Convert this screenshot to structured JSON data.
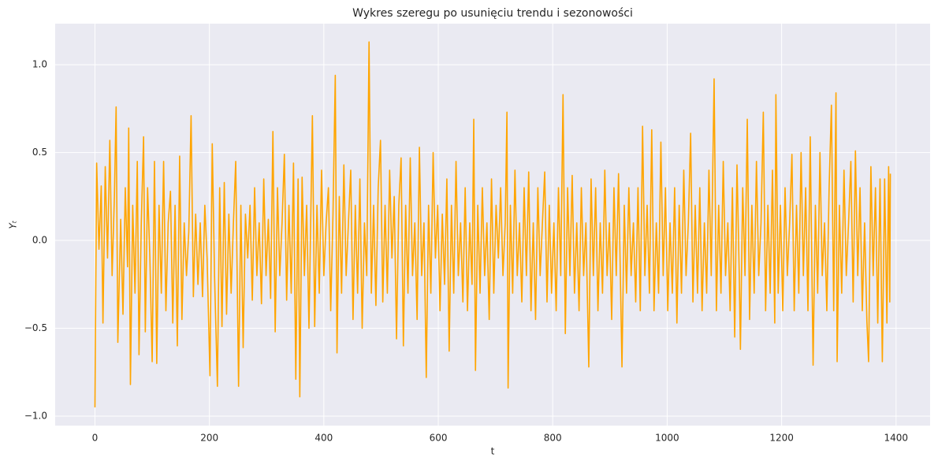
{
  "chart_data": {
    "type": "line",
    "title": "Wykres szeregu po usunięciu trendu i sezonowości",
    "xlabel": "t",
    "ylabel": "Yₜ",
    "color": "#ffa500",
    "grid": true,
    "xlim": [
      -69.5,
      1459.5
    ],
    "ylim": [
      -1.054,
      1.234
    ],
    "xticks": [
      0,
      200,
      400,
      600,
      800,
      1000,
      1200,
      1400
    ],
    "yticks": [
      {
        "value": -1,
        "label": "−1.0"
      },
      {
        "value": -0.5,
        "label": "−0.5"
      },
      {
        "value": 0,
        "label": "0.0"
      },
      {
        "value": 0.5,
        "label": "0.5"
      },
      {
        "value": 1,
        "label": "1.0"
      }
    ],
    "x": [
      0,
      3,
      7,
      11,
      14,
      18,
      22,
      26,
      30,
      34,
      37,
      40,
      45,
      49,
      53,
      57,
      59,
      62,
      66,
      70,
      74,
      77,
      81,
      85,
      88,
      92,
      96,
      100,
      104,
      108,
      112,
      116,
      120,
      124,
      128,
      132,
      136,
      140,
      144,
      148,
      152,
      156,
      160,
      164,
      168,
      172,
      176,
      180,
      184,
      188,
      192,
      196,
      201,
      205,
      209,
      214,
      218,
      222,
      226,
      230,
      234,
      238,
      242,
      246,
      251,
      255,
      259,
      263,
      267,
      271,
      275,
      279,
      283,
      287,
      291,
      295,
      299,
      303,
      307,
      311,
      315,
      319,
      323,
      327,
      331,
      335,
      339,
      343,
      347,
      351,
      355,
      358,
      362,
      366,
      370,
      374,
      378,
      380,
      384,
      388,
      392,
      396,
      400,
      404,
      408,
      412,
      416,
      420,
      423,
      427,
      431,
      435,
      439,
      443,
      447,
      451,
      455,
      459,
      463,
      467,
      471,
      475,
      479,
      483,
      487,
      491,
      495,
      499,
      503,
      507,
      511,
      515,
      519,
      523,
      527,
      531,
      535,
      539,
      543,
      547,
      551,
      555,
      559,
      563,
      567,
      571,
      575,
      579,
      583,
      587,
      591,
      595,
      599,
      603,
      607,
      611,
      615,
      619,
      623,
      627,
      631,
      635,
      639,
      643,
      647,
      651,
      655,
      659,
      662,
      665,
      669,
      673,
      677,
      681,
      685,
      689,
      693,
      697,
      701,
      705,
      709,
      713,
      717,
      720,
      722,
      726,
      730,
      734,
      738,
      742,
      746,
      750,
      754,
      758,
      762,
      766,
      770,
      774,
      778,
      782,
      786,
      790,
      794,
      798,
      802,
      806,
      810,
      814,
      818,
      822,
      826,
      830,
      834,
      838,
      842,
      846,
      850,
      854,
      858,
      863,
      867,
      871,
      875,
      879,
      883,
      887,
      891,
      895,
      899,
      903,
      907,
      911,
      915,
      921,
      925,
      929,
      933,
      937,
      941,
      945,
      949,
      953,
      957,
      961,
      965,
      969,
      973,
      977,
      981,
      985,
      989,
      993,
      997,
      1001,
      1005,
      1009,
      1013,
      1017,
      1021,
      1025,
      1029,
      1033,
      1037,
      1041,
      1045,
      1049,
      1053,
      1057,
      1061,
      1065,
      1069,
      1073,
      1077,
      1082,
      1086,
      1090,
      1094,
      1098,
      1102,
      1106,
      1110,
      1114,
      1118,
      1122,
      1126,
      1128,
      1132,
      1136,
      1140,
      1144,
      1148,
      1152,
      1156,
      1160,
      1164,
      1168,
      1172,
      1176,
      1180,
      1184,
      1188,
      1190,
      1194,
      1198,
      1202,
      1206,
      1210,
      1214,
      1218,
      1222,
      1226,
      1230,
      1234,
      1238,
      1242,
      1246,
      1250,
      1255,
      1259,
      1263,
      1267,
      1271,
      1275,
      1279,
      1283,
      1287,
      1291,
      1295,
      1297,
      1301,
      1305,
      1309,
      1313,
      1317,
      1321,
      1325,
      1329,
      1333,
      1337,
      1341,
      1345,
      1349,
      1352,
      1356,
      1360,
      1364,
      1368,
      1372,
      1376,
      1380,
      1384,
      1387,
      1389,
      1390
    ],
    "values": [
      -0.95,
      0.44,
      -0.05,
      0.31,
      -0.47,
      0.42,
      -0.1,
      0.57,
      -0.2,
      0.25,
      0.76,
      -0.58,
      0.12,
      -0.42,
      0.3,
      -0.15,
      0.64,
      -0.82,
      0.2,
      -0.3,
      0.45,
      -0.65,
      0.1,
      0.59,
      -0.52,
      0.3,
      -0.1,
      -0.69,
      0.45,
      -0.7,
      0.2,
      -0.3,
      0.45,
      -0.4,
      0.1,
      0.28,
      -0.47,
      0.2,
      -0.6,
      0.48,
      -0.45,
      0.1,
      -0.2,
      0.05,
      0.71,
      -0.32,
      0.15,
      -0.25,
      0.1,
      -0.32,
      0.2,
      -0.1,
      -0.77,
      0.55,
      -0.2,
      -0.83,
      0.3,
      -0.49,
      0.33,
      -0.42,
      0.15,
      -0.3,
      0.1,
      0.45,
      -0.83,
      0.2,
      -0.61,
      0.15,
      -0.1,
      0.2,
      -0.34,
      0.3,
      -0.2,
      0.1,
      -0.36,
      0.35,
      -0.2,
      0.12,
      -0.33,
      0.62,
      -0.52,
      0.3,
      -0.2,
      0.1,
      0.49,
      -0.34,
      0.2,
      -0.3,
      0.44,
      -0.79,
      0.35,
      -0.89,
      0.36,
      -0.2,
      0.2,
      -0.5,
      0.3,
      0.71,
      -0.49,
      0.2,
      -0.3,
      0.4,
      -0.2,
      0.1,
      0.3,
      -0.4,
      0.15,
      0.94,
      -0.64,
      0.25,
      -0.3,
      0.43,
      -0.2,
      0.1,
      0.4,
      -0.45,
      0.2,
      -0.3,
      0.35,
      -0.5,
      0.1,
      -0.2,
      1.13,
      -0.3,
      0.2,
      -0.37,
      0.3,
      0.57,
      -0.35,
      0.2,
      -0.3,
      0.4,
      -0.1,
      0.25,
      -0.56,
      0.2,
      0.47,
      -0.6,
      0.2,
      -0.3,
      0.47,
      -0.2,
      0.1,
      -0.45,
      0.53,
      -0.2,
      0.1,
      -0.78,
      0.2,
      -0.3,
      0.5,
      -0.1,
      0.2,
      -0.4,
      0.15,
      -0.25,
      0.35,
      -0.63,
      0.2,
      -0.3,
      0.45,
      -0.2,
      0.1,
      -0.35,
      0.3,
      -0.4,
      0.1,
      -0.25,
      0.69,
      -0.74,
      0.2,
      -0.3,
      0.3,
      -0.2,
      0.1,
      -0.45,
      0.35,
      -0.3,
      0.2,
      -0.1,
      0.3,
      -0.2,
      0.1,
      0.73,
      -0.84,
      0.2,
      -0.3,
      0.4,
      -0.2,
      0.1,
      -0.35,
      0.3,
      -0.2,
      0.39,
      -0.4,
      0.1,
      -0.45,
      0.3,
      -0.2,
      0.1,
      0.39,
      -0.35,
      0.2,
      -0.3,
      0.1,
      -0.4,
      0.3,
      -0.2,
      0.83,
      -0.53,
      0.3,
      -0.2,
      0.37,
      -0.3,
      0.1,
      -0.4,
      0.3,
      -0.2,
      0.1,
      -0.72,
      0.35,
      -0.2,
      0.3,
      -0.4,
      0.1,
      -0.3,
      0.4,
      -0.2,
      0.1,
      -0.45,
      0.3,
      -0.2,
      0.38,
      -0.72,
      0.2,
      -0.3,
      0.3,
      -0.2,
      0.1,
      -0.35,
      0.3,
      -0.4,
      0.65,
      -0.2,
      0.2,
      -0.3,
      0.63,
      -0.4,
      0.1,
      -0.3,
      0.56,
      -0.2,
      0.3,
      -0.4,
      0.1,
      -0.3,
      0.3,
      -0.47,
      0.2,
      -0.3,
      0.4,
      -0.2,
      0.1,
      0.61,
      -0.35,
      0.2,
      -0.3,
      0.3,
      -0.4,
      0.1,
      -0.3,
      0.4,
      -0.2,
      0.92,
      -0.4,
      0.2,
      -0.3,
      0.45,
      -0.2,
      0.1,
      -0.4,
      0.3,
      -0.55,
      0.43,
      -0.2,
      -0.62,
      0.3,
      -0.2,
      0.69,
      -0.45,
      0.2,
      -0.3,
      0.45,
      -0.2,
      0.1,
      0.73,
      -0.4,
      0.2,
      -0.3,
      0.4,
      -0.47,
      0.83,
      -0.3,
      0.2,
      -0.4,
      0.3,
      -0.2,
      0.1,
      0.49,
      -0.4,
      0.2,
      -0.3,
      0.5,
      -0.2,
      0.3,
      -0.4,
      0.59,
      -0.71,
      0.2,
      -0.3,
      0.5,
      -0.2,
      0.1,
      -0.4,
      0.3,
      0.77,
      -0.4,
      0.84,
      -0.69,
      0.2,
      -0.3,
      0.4,
      -0.2,
      0.1,
      0.45,
      -0.35,
      0.51,
      -0.2,
      0.3,
      -0.4,
      0.1,
      -0.46,
      -0.69,
      0.42,
      -0.2,
      0.3,
      -0.47,
      0.35,
      -0.69,
      0.35,
      -0.47,
      0.42,
      -0.35,
      0.38
    ]
  }
}
